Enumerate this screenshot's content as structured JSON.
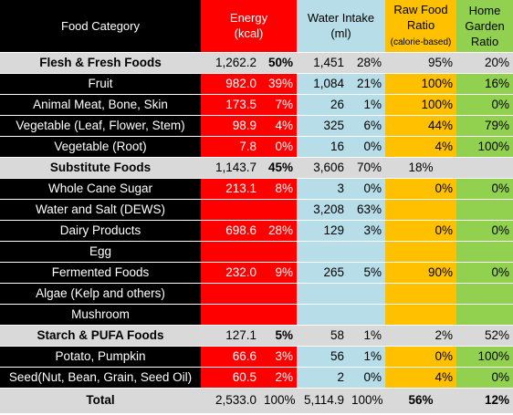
{
  "headers": {
    "food_category": "Food Category",
    "energy_line1": "Energy",
    "energy_line2": "(kcal)",
    "water_line1": "Water Intake",
    "water_line2": "(ml)",
    "raw_line1": "Raw Food",
    "raw_line2": "Ratio",
    "raw_line3": "(calorie-based)",
    "home_line1": "Home",
    "home_line2": "Garden",
    "home_line3": "Ratio"
  },
  "rows": [
    {
      "name": "Flesh & Fresh Foods",
      "energy": "1,262.2",
      "energy_pct": "50%",
      "water": "1,451",
      "water_pct": "28%",
      "raw": "95%",
      "home": "20%"
    },
    {
      "name": "Fruit",
      "energy": "982.0",
      "energy_pct": "39%",
      "water": "1,084",
      "water_pct": "21%",
      "raw": "100%",
      "home": "16%"
    },
    {
      "name": "Animal Meat, Bone, Skin",
      "energy": "173.5",
      "energy_pct": "7%",
      "water": "26",
      "water_pct": "1%",
      "raw": "100%",
      "home": "0%"
    },
    {
      "name": "Vegetable (Leaf, Flower, Stem)",
      "energy": "98.9",
      "energy_pct": "4%",
      "water": "325",
      "water_pct": "6%",
      "raw": "44%",
      "home": "79%"
    },
    {
      "name": "Vegetable (Root)",
      "energy": "7.8",
      "energy_pct": "0%",
      "water": "16",
      "water_pct": "0%",
      "raw": "4%",
      "home": "100%"
    },
    {
      "name": "Substitute Foods",
      "energy": "1,143.7",
      "energy_pct": "45%",
      "water": "3,606",
      "water_pct": "70%",
      "raw": "18%",
      "home": ""
    },
    {
      "name": "Whole Cane Sugar",
      "energy": "213.1",
      "energy_pct": "8%",
      "water": "3",
      "water_pct": "0%",
      "raw": "0%",
      "home": "0%"
    },
    {
      "name": "Water and Salt (DEWS)",
      "energy": "",
      "energy_pct": "",
      "water": "3,208",
      "water_pct": "63%",
      "raw": "",
      "home": ""
    },
    {
      "name": "Dairy Products",
      "energy": "698.6",
      "energy_pct": "28%",
      "water": "129",
      "water_pct": "3%",
      "raw": "0%",
      "home": "0%"
    },
    {
      "name": "Egg",
      "energy": "",
      "energy_pct": "",
      "water": "",
      "water_pct": "",
      "raw": "",
      "home": ""
    },
    {
      "name": "Fermented Foods",
      "energy": "232.0",
      "energy_pct": "9%",
      "water": "265",
      "water_pct": "5%",
      "raw": "90%",
      "home": "0%"
    },
    {
      "name": "Algae (Kelp and others)",
      "energy": "",
      "energy_pct": "",
      "water": "",
      "water_pct": "",
      "raw": "",
      "home": ""
    },
    {
      "name": "Mushroom",
      "energy": "",
      "energy_pct": "",
      "water": "",
      "water_pct": "",
      "raw": "",
      "home": ""
    },
    {
      "name": "Starch & PUFA Foods",
      "energy": "127.1",
      "energy_pct": "5%",
      "water": "58",
      "water_pct": "1%",
      "raw": "2%",
      "home": "52%"
    },
    {
      "name": "Potato, Pumpkin",
      "energy": "66.6",
      "energy_pct": "3%",
      "water": "56",
      "water_pct": "1%",
      "raw": "0%",
      "home": "100%"
    },
    {
      "name": "Seed(Nut, Bean, Grain, Seed Oil)",
      "energy": "60.5",
      "energy_pct": "2%",
      "water": "2",
      "water_pct": "0%",
      "raw": "4%",
      "home": "0%"
    },
    {
      "name": "Total",
      "energy": "2,533.0",
      "energy_pct": "100%",
      "water": "5,114.9",
      "water_pct": "100%",
      "raw": "56%",
      "home": "12%"
    }
  ]
}
